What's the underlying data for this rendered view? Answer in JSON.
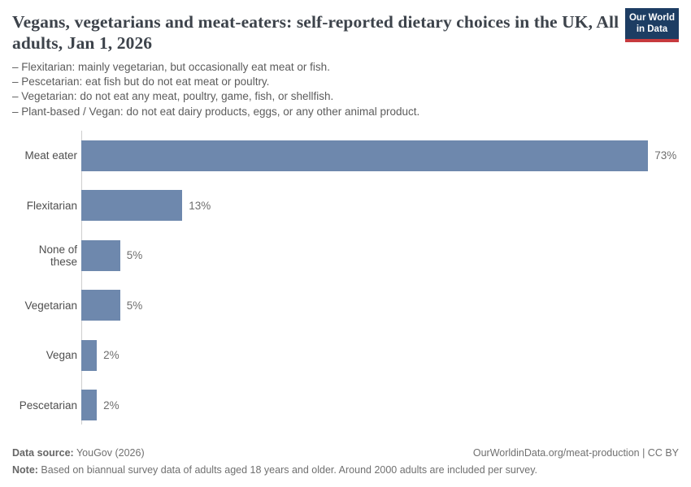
{
  "header": {
    "title": "Vegans, vegetarians and meat-eaters: self-reported dietary choices in the UK, All adults, Jan 1, 2026",
    "logo": {
      "line1": "Our World",
      "line2": "in Data"
    },
    "subtitle_lines": [
      "– Flexitarian: mainly vegetarian, but occasionally eat meat or fish.",
      "– Pescetarian: eat fish but do not eat meat or poultry.",
      "– Vegetarian: do not eat any meat, poultry, game, fish, or shellfish.",
      "– Plant-based / Vegan: do not eat dairy products, eggs, or any other animal product."
    ]
  },
  "chart_data": {
    "type": "bar",
    "orientation": "horizontal",
    "title": "Vegans, vegetarians and meat-eaters: self-reported dietary choices in the UK, All adults, Jan 1, 2026",
    "categories": [
      "Meat eater",
      "Flexitarian",
      "None of these",
      "Vegetarian",
      "Vegan",
      "Pescetarian"
    ],
    "values": [
      73,
      13,
      5,
      5,
      2,
      2
    ],
    "value_labels": [
      "73%",
      "13%",
      "5%",
      "5%",
      "2%",
      "2%"
    ],
    "unit": "%",
    "xlim": [
      0,
      77
    ],
    "grid": false,
    "legend": "none",
    "bar_color": "#6e88ad",
    "axis_line_color": "#cfcfcf"
  },
  "footer": {
    "source_label": "Data source:",
    "source_value": " YouGov (2026)",
    "attribution": "OurWorldinData.org/meat-production | CC BY",
    "note_label": "Note:",
    "note_value": " Based on biannual survey data of adults aged 18 years and older. Around 2000 adults are included per survey."
  },
  "colors": {
    "bar": "#6e88ad",
    "logo_navy": "#1d3d63",
    "logo_red": "#c73a3e",
    "title_text": "#3d434b",
    "subtitle_text": "#5c5c5c",
    "footer_text": "#707070"
  }
}
